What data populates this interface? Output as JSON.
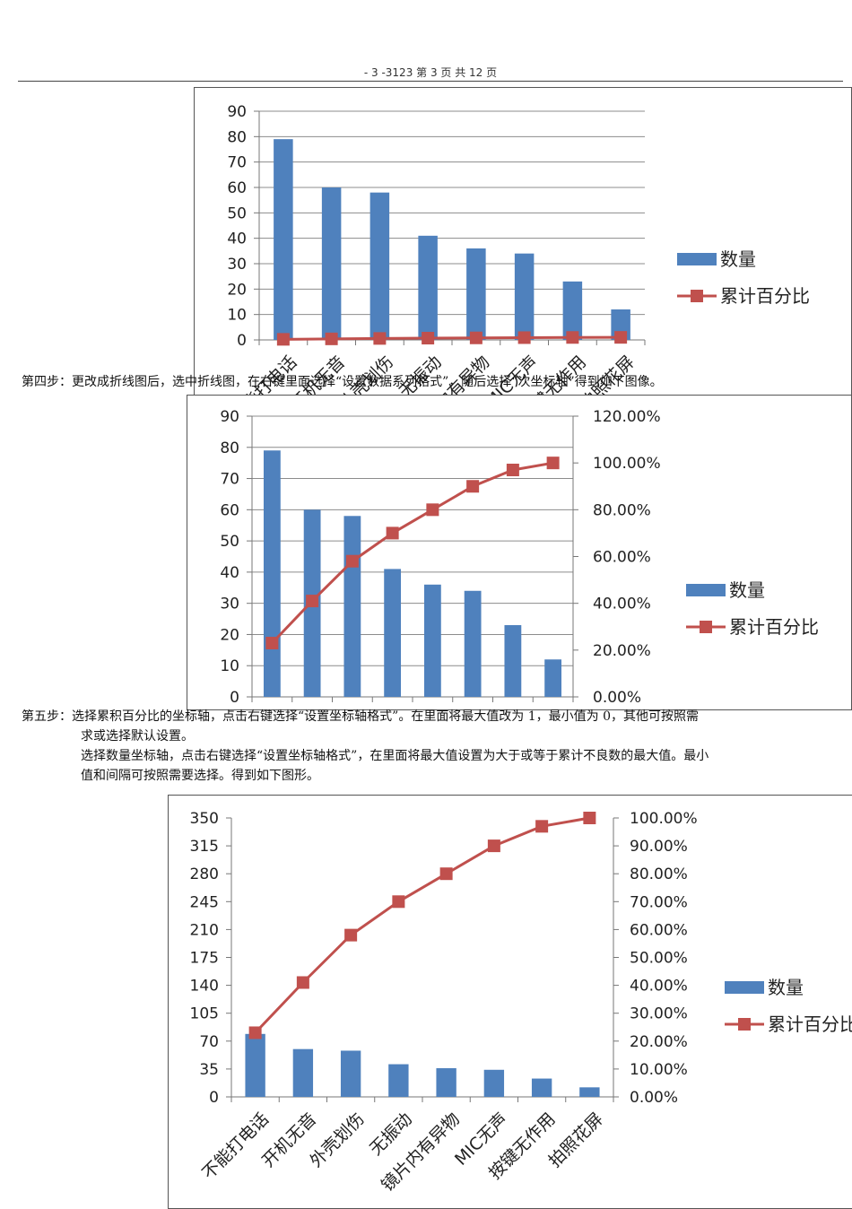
{
  "header": {
    "text": "- 3 -3123 第 3 页 共 12 页"
  },
  "steps": {
    "step4": "第四步：更改成折线图后，选中折线图，在右键里面选择“设置数据系列格式”，随后选择“次坐标轴”得到如下图像。",
    "step5_line1": "第五步：选择累积百分比的坐标轴，点击右键选择“设置坐标轴格式”。在里面将最大值改为 1，最小值为 0，其他可按照需",
    "step5_line2": "求或选择默认设置。",
    "step5_line3": "选择数量坐标轴，点击右键选择“设置坐标轴格式”，在里面将最大值设置为大于或等于累计不良数的最大值。最小",
    "step5_line4": "值和间隔可按照需要选择。得到如下图形。"
  },
  "chart_data": [
    {
      "type": "bar",
      "title": "",
      "categories": [
        "不能打电话",
        "开机无音",
        "外壳划伤",
        "无振动",
        "镜片内有异物",
        "MIC无声",
        "按键无作用",
        "拍照花屏"
      ],
      "series": [
        {
          "name": "数量",
          "type": "bar",
          "axis": "primary",
          "values": [
            79,
            60,
            58,
            41,
            36,
            34,
            23,
            12
          ]
        },
        {
          "name": "累计百分比",
          "type": "line",
          "axis": "primary",
          "values": [
            0.23,
            0.41,
            0.58,
            0.7,
            0.8,
            0.9,
            0.97,
            1.0
          ]
        }
      ],
      "ylim": [
        0,
        90
      ],
      "yticks": [
        0,
        10,
        20,
        30,
        40,
        50,
        60,
        70,
        80,
        90
      ],
      "legend": "right",
      "grid": true,
      "colors": {
        "bar": "#4f81bd",
        "line": "#c0504d"
      }
    },
    {
      "type": "bar",
      "title": "",
      "categories": [
        "不能打电话",
        "开机无音",
        "外壳划伤",
        "无振动",
        "镜片内有异物",
        "MIC无声",
        "按键无作用",
        "拍照花屏"
      ],
      "series": [
        {
          "name": "数量",
          "type": "bar",
          "axis": "primary",
          "values": [
            79,
            60,
            58,
            41,
            36,
            34,
            23,
            12
          ]
        },
        {
          "name": "累计百分比",
          "type": "line",
          "axis": "secondary",
          "values": [
            0.23,
            0.41,
            0.58,
            0.7,
            0.8,
            0.9,
            0.97,
            1.0
          ]
        }
      ],
      "ylim": [
        0,
        90
      ],
      "yticks": [
        0,
        10,
        20,
        30,
        40,
        50,
        60,
        70,
        80,
        90
      ],
      "y2lim": [
        0,
        1.2
      ],
      "y2ticks": [
        "0.00%",
        "20.00%",
        "40.00%",
        "60.00%",
        "80.00%",
        "100.00%",
        "120.00%"
      ],
      "legend": "right",
      "grid": true,
      "colors": {
        "bar": "#4f81bd",
        "line": "#c0504d"
      }
    },
    {
      "type": "bar",
      "title": "",
      "categories": [
        "不能打电话",
        "开机无音",
        "外壳划伤",
        "无振动",
        "镜片内有异物",
        "MIC无声",
        "按键无作用",
        "拍照花屏"
      ],
      "series": [
        {
          "name": "数量",
          "type": "bar",
          "axis": "primary",
          "values": [
            79,
            60,
            58,
            41,
            36,
            34,
            23,
            12
          ]
        },
        {
          "name": "累计百分比",
          "type": "line",
          "axis": "secondary",
          "values": [
            0.23,
            0.41,
            0.58,
            0.7,
            0.8,
            0.9,
            0.97,
            1.0
          ]
        }
      ],
      "ylim": [
        0,
        350
      ],
      "yticks": [
        0,
        35,
        70,
        105,
        140,
        175,
        210,
        245,
        280,
        315,
        350
      ],
      "y2lim": [
        0,
        1.0
      ],
      "y2ticks": [
        "0.00%",
        "10.00%",
        "20.00%",
        "30.00%",
        "40.00%",
        "50.00%",
        "60.00%",
        "70.00%",
        "80.00%",
        "90.00%",
        "100.00%"
      ],
      "legend": "right",
      "grid": false,
      "colors": {
        "bar": "#4f81bd",
        "line": "#c0504d"
      }
    }
  ]
}
